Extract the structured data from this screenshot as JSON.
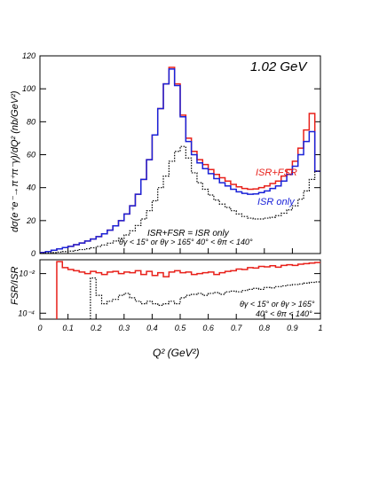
{
  "chart_data": [
    {
      "type": "line",
      "energy_label": "1.02 GeV",
      "ylabel": "dσ(e⁺e⁻→π⁺π⁻γ)/dQ² (nb/GeV²)",
      "xlim": [
        0,
        1
      ],
      "ylim": [
        0,
        120
      ],
      "yticks": [
        "0",
        "20",
        "40",
        "60",
        "80",
        "100",
        "120"
      ],
      "x_step": 0.02,
      "series": [
        {
          "name": "ISR+FSR",
          "color": "#e8201a",
          "style": "solid/dashed",
          "values": [
            0.6,
            1.2,
            2.0,
            2.8,
            3.6,
            4.4,
            5.4,
            6.4,
            7.6,
            8.8,
            10.3,
            12.0,
            14.2,
            16.8,
            20.0,
            24.0,
            29.0,
            36.0,
            45.0,
            57.0,
            72.0,
            88.0,
            103.0,
            113.0,
            103.0,
            84.0,
            70.0,
            62.0,
            57.0,
            54.0,
            51.0,
            48.0,
            46.0,
            44.0,
            42.0,
            40.5,
            39.5,
            39.0,
            39.2,
            40.0,
            41.0,
            42.5,
            44.0,
            47.0,
            51.0,
            56.0,
            64.0,
            75.0,
            85.0,
            50.0
          ]
        },
        {
          "name": "ISR only",
          "color": "#1a22d8",
          "style": "solid",
          "values": [
            0.6,
            1.2,
            2.0,
            2.8,
            3.6,
            4.4,
            5.4,
            6.4,
            7.6,
            8.8,
            10.3,
            12.0,
            14.2,
            16.8,
            20.0,
            24.0,
            29.0,
            36.0,
            45.0,
            57.0,
            72.0,
            88.0,
            103.0,
            112.0,
            102.0,
            83.0,
            68.0,
            60.0,
            55.0,
            51.5,
            48.5,
            45.5,
            43.0,
            41.0,
            39.0,
            37.5,
            36.5,
            36.0,
            36.2,
            37.0,
            38.0,
            39.5,
            41.0,
            44.0,
            48.0,
            53.0,
            60.0,
            68.0,
            74.0,
            50.0
          ]
        },
        {
          "name": "θγ < 15° or θγ > 165°  40° < θπ < 140°",
          "color": "#000000",
          "style": "dotted",
          "values": [
            0.2,
            0.4,
            0.6,
            0.9,
            1.2,
            1.5,
            1.9,
            2.4,
            2.9,
            3.5,
            4.3,
            5.2,
            6.3,
            7.6,
            9.2,
            11.3,
            13.8,
            17.0,
            21.0,
            26.0,
            32.0,
            40.0,
            47.0,
            56.0,
            62.0,
            65.0,
            58.0,
            49.0,
            43.0,
            39.0,
            35.5,
            32.5,
            30.0,
            28.0,
            26.0,
            24.0,
            22.5,
            21.5,
            21.0,
            21.0,
            21.5,
            22.0,
            23.0,
            24.5,
            26.5,
            29.0,
            33.0,
            38.0,
            45.0,
            50.0
          ]
        }
      ],
      "annotations": {
        "isr_fsr": "ISR+FSR",
        "isr_only": "ISR only",
        "equality": "ISR+FSR  =  ISR only",
        "cuts": "θγ < 15° or θγ > 165°  40° < θπ < 140°"
      }
    },
    {
      "type": "line",
      "ylabel": "FSR/ISR",
      "xlabel": "Q² (GeV²)",
      "xlim": [
        0,
        1
      ],
      "yscale": "log",
      "ylim": [
        5e-05,
        0.05
      ],
      "yticks": [
        "10⁻²",
        "10⁻⁴"
      ],
      "xticks": [
        "0",
        "0.1",
        "0.2",
        "0.3",
        "0.4",
        "0.5",
        "0.6",
        "0.7",
        "0.8",
        "0.9",
        "1"
      ],
      "x_step": 0.02,
      "series": [
        {
          "name": "ISR+FSR",
          "color": "#e8201a",
          "style": "solid",
          "values": [
            null,
            null,
            null,
            0.04,
            0.02,
            0.016,
            0.014,
            0.012,
            0.01,
            0.013,
            0.011,
            0.009,
            0.012,
            0.013,
            0.01,
            0.012,
            0.011,
            0.014,
            0.009,
            0.013,
            0.008,
            0.011,
            0.007,
            0.012,
            0.014,
            0.011,
            0.012,
            0.009,
            0.01,
            0.011,
            0.012,
            0.009,
            0.011,
            0.013,
            0.014,
            0.017,
            0.016,
            0.02,
            0.019,
            0.023,
            0.022,
            0.025,
            0.021,
            0.026,
            0.028,
            0.026,
            0.03,
            0.032,
            0.034,
            0.036
          ]
        },
        {
          "name": "θγ < 15° or θγ > 165°  40° < θπ < 140°",
          "color": "#000000",
          "style": "dotted",
          "values": [
            null,
            null,
            null,
            null,
            null,
            null,
            null,
            null,
            null,
            0.006,
            0.0008,
            0.0003,
            0.0004,
            0.0005,
            0.0008,
            0.001,
            0.0006,
            0.0004,
            0.0003,
            0.0004,
            0.0003,
            0.00025,
            0.0003,
            0.0004,
            0.0003,
            0.0006,
            0.0008,
            0.0009,
            0.001,
            0.0008,
            0.001,
            0.0011,
            0.0009,
            0.0012,
            0.0013,
            0.0012,
            0.0014,
            0.0016,
            0.0018,
            0.0016,
            0.002,
            0.0019,
            0.0022,
            0.0024,
            0.0026,
            0.0028,
            0.003,
            0.0033,
            0.0036,
            0.0038
          ]
        }
      ],
      "annotations": {
        "cuts_line1": "θγ < 15° or θγ > 165°",
        "cuts_line2": "40° < θπ < 140°"
      }
    }
  ]
}
